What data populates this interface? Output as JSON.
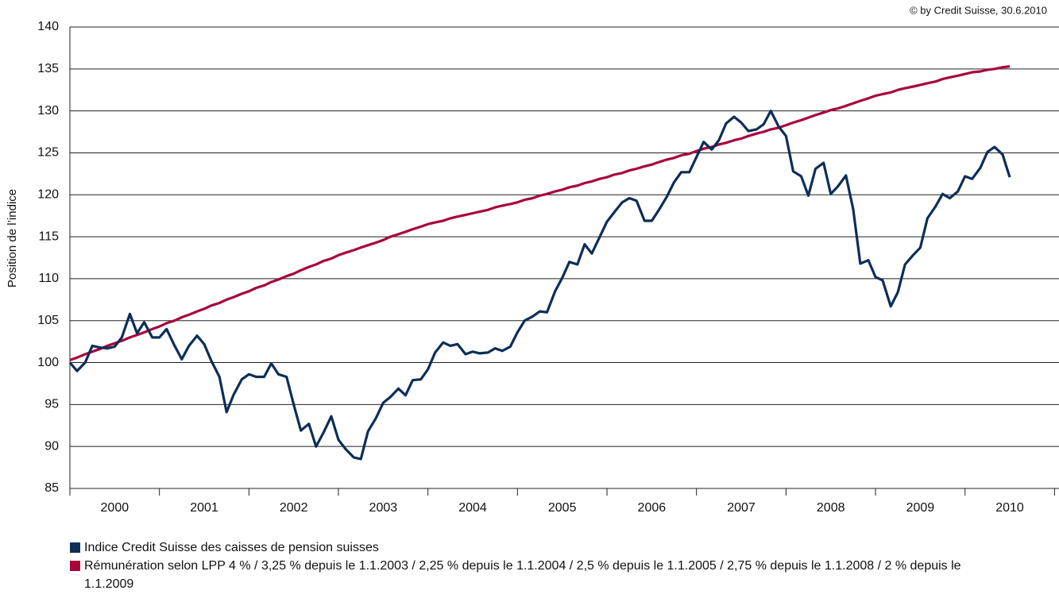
{
  "chart_data": {
    "type": "line",
    "source": "© by Credit Suisse, 30.6.2010",
    "y_label": "Position de l’indice",
    "categories": [
      "2000",
      "2001",
      "2002",
      "2003",
      "2004",
      "2005",
      "2006",
      "2007",
      "2008",
      "2009",
      "2010"
    ],
    "x": [
      2000.0,
      2000.08,
      2000.17,
      2000.25,
      2000.33,
      2000.42,
      2000.5,
      2000.58,
      2000.67,
      2000.75,
      2000.83,
      2000.92,
      2001.0,
      2001.08,
      2001.17,
      2001.25,
      2001.33,
      2001.42,
      2001.5,
      2001.58,
      2001.67,
      2001.75,
      2001.83,
      2001.92,
      2002.0,
      2002.08,
      2002.17,
      2002.25,
      2002.33,
      2002.42,
      2002.5,
      2002.58,
      2002.67,
      2002.75,
      2002.83,
      2002.92,
      2003.0,
      2003.08,
      2003.17,
      2003.25,
      2003.33,
      2003.42,
      2003.5,
      2003.58,
      2003.67,
      2003.75,
      2003.83,
      2003.92,
      2004.0,
      2004.08,
      2004.17,
      2004.25,
      2004.33,
      2004.42,
      2004.5,
      2004.58,
      2004.67,
      2004.75,
      2004.83,
      2004.92,
      2005.0,
      2005.08,
      2005.17,
      2005.25,
      2005.33,
      2005.42,
      2005.5,
      2005.58,
      2005.67,
      2005.75,
      2005.83,
      2005.92,
      2006.0,
      2006.08,
      2006.17,
      2006.25,
      2006.33,
      2006.42,
      2006.5,
      2006.58,
      2006.67,
      2006.75,
      2006.83,
      2006.92,
      2007.0,
      2007.08,
      2007.17,
      2007.25,
      2007.33,
      2007.42,
      2007.5,
      2007.58,
      2007.67,
      2007.75,
      2007.83,
      2007.92,
      2008.0,
      2008.08,
      2008.17,
      2008.25,
      2008.33,
      2008.42,
      2008.5,
      2008.58,
      2008.67,
      2008.75,
      2008.83,
      2008.92,
      2009.0,
      2009.08,
      2009.17,
      2009.25,
      2009.33,
      2009.42,
      2009.5,
      2009.58,
      2009.67,
      2009.75,
      2009.83,
      2009.92,
      2010.0,
      2010.08,
      2010.17,
      2010.25,
      2010.33,
      2010.42,
      2010.5
    ],
    "xlim": [
      2000,
      2011.05
    ],
    "xticks": [
      2000,
      2001,
      2002,
      2003,
      2004,
      2005,
      2006,
      2007,
      2008,
      2009,
      2010,
      2011
    ],
    "ylim": [
      85,
      140
    ],
    "yticks": [
      85,
      90,
      95,
      100,
      105,
      110,
      115,
      120,
      125,
      130,
      135,
      140
    ],
    "grid": true,
    "series": [
      {
        "name": "Indice Credit Suisse des caisses de pension suisses",
        "color": "#0c2e58",
        "values": [
          100,
          99,
          100,
          102,
          101.8,
          101.7,
          101.9,
          103,
          105.8,
          103.5,
          104.8,
          103,
          103,
          104,
          102,
          100.4,
          102,
          103.2,
          102.2,
          100.2,
          98.3,
          94.1,
          96.2,
          98,
          98.6,
          98.3,
          98.3,
          99.9,
          98.6,
          98.3,
          95,
          91.9,
          92.7,
          90,
          91.6,
          93.6,
          90.8,
          89.7,
          88.7,
          88.5,
          91.8,
          93.4,
          95.2,
          95.9,
          96.9,
          96.1,
          97.9,
          98,
          99.2,
          101.2,
          102.4,
          102,
          102.2,
          101,
          101.3,
          101.1,
          101.2,
          101.7,
          101.4,
          101.9,
          103.6,
          105,
          105.5,
          106.1,
          106,
          108.5,
          110.1,
          112,
          111.7,
          114.1,
          113,
          115,
          116.8,
          117.9,
          119.1,
          119.6,
          119.3,
          116.9,
          116.9,
          118.2,
          119.8,
          121.5,
          122.7,
          122.7,
          124.5,
          126.3,
          125.4,
          126.5,
          128.5,
          129.3,
          128.6,
          127.6,
          127.8,
          128.4,
          130,
          128.1,
          127,
          122.8,
          122.2,
          119.9,
          123.1,
          123.8,
          120.1,
          121,
          122.3,
          118.3,
          111.8,
          112.2,
          110.2,
          109.8,
          106.7,
          108.4,
          111.7,
          112.8,
          113.7,
          117.2,
          118.6,
          120.1,
          119.6,
          120.4,
          122.2,
          121.9,
          123.2,
          125.1,
          125.7,
          124.8,
          122.1
        ]
      },
      {
        "name": "Rémunération selon LPP 4 % / 3,25 % depuis le 1.1.2003 / 2,25 % depuis le 1.1.2004 / 2,5 % depuis le 1.1.2005 / 2,75 % depuis le 1.1.2008 / 2 % depuis le 1.1.2009",
        "color": "#a8043b",
        "values": [
          100.3,
          100.6,
          101.0,
          101.3,
          101.6,
          102.0,
          102.3,
          102.6,
          103.0,
          103.3,
          103.6,
          104.0,
          104.3,
          104.7,
          105.0,
          105.4,
          105.7,
          106.1,
          106.4,
          106.8,
          107.1,
          107.5,
          107.8,
          108.2,
          108.5,
          108.9,
          109.2,
          109.6,
          109.9,
          110.3,
          110.6,
          111.0,
          111.4,
          111.7,
          112.1,
          112.4,
          112.8,
          113.1,
          113.4,
          113.7,
          114.0,
          114.3,
          114.6,
          115.0,
          115.3,
          115.6,
          115.9,
          116.2,
          116.5,
          116.7,
          116.9,
          117.2,
          117.4,
          117.6,
          117.8,
          118.0,
          118.2,
          118.5,
          118.7,
          118.9,
          119.1,
          119.4,
          119.6,
          119.9,
          120.1,
          120.4,
          120.6,
          120.9,
          121.1,
          121.4,
          121.6,
          121.9,
          122.1,
          122.4,
          122.6,
          122.9,
          123.1,
          123.4,
          123.6,
          123.9,
          124.2,
          124.4,
          124.7,
          124.9,
          125.2,
          125.5,
          125.7,
          126.0,
          126.2,
          126.5,
          126.7,
          127.0,
          127.3,
          127.5,
          127.8,
          128.0,
          128.3,
          128.6,
          128.9,
          129.2,
          129.5,
          129.8,
          130.1,
          130.3,
          130.6,
          130.9,
          131.2,
          131.5,
          131.8,
          132.0,
          132.2,
          132.5,
          132.7,
          132.9,
          133.1,
          133.3,
          133.5,
          133.8,
          134.0,
          134.2,
          134.4,
          134.6,
          134.7,
          134.9,
          135.0,
          135.2,
          135.3
        ]
      }
    ]
  }
}
